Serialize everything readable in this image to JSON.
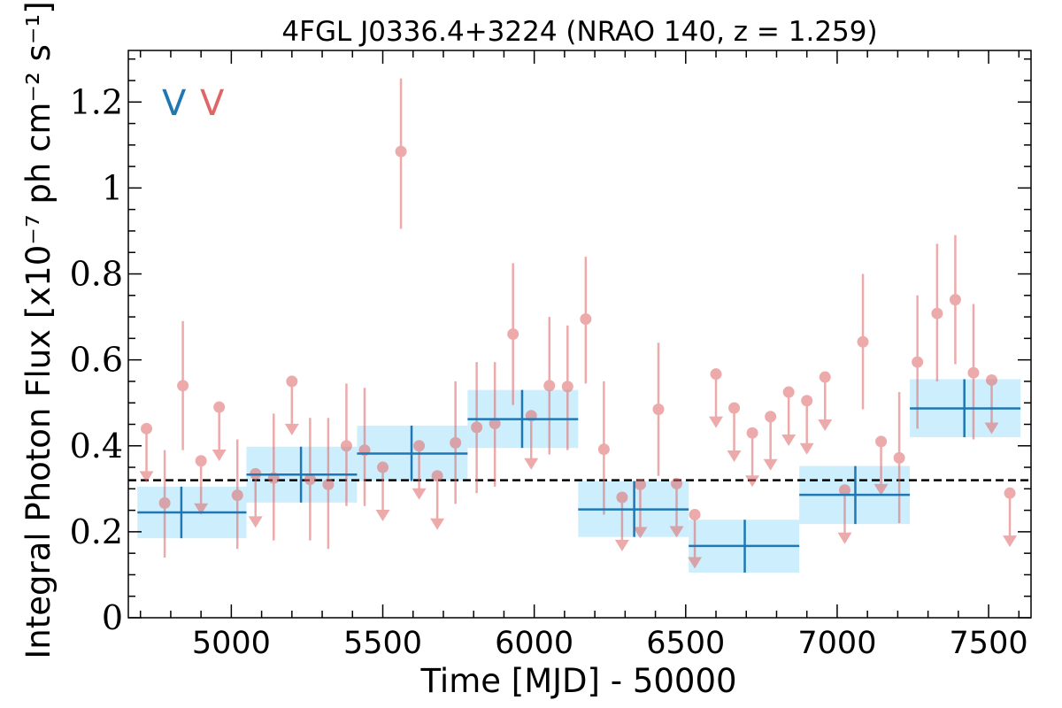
{
  "colors": {
    "binned": "#1f77b4",
    "binned_fill": "#cdeefc",
    "monthly": "#e06666",
    "mean_line": "#000000"
  },
  "chart_data": {
    "type": "scatter",
    "title": "4FGL J0336.4+3224 (NRAO 140, z = 1.259)",
    "xlabel": "Time [MJD] - 50000",
    "ylabel": "Integral Photon Flux [x10⁻⁷ ph cm⁻² s⁻¹]",
    "xlim": [
      4660,
      7640
    ],
    "ylim": [
      0,
      1.32
    ],
    "xticks": [
      5000,
      5500,
      6000,
      6500,
      7000,
      7500
    ],
    "xtick_labels": [
      "5000",
      "5500",
      "6000",
      "6500",
      "7000",
      "7500"
    ],
    "yticks": [
      0,
      0.2,
      0.4,
      0.6,
      0.8,
      1,
      1.2
    ],
    "ytick_labels": [
      "0",
      "0.2",
      "0.4",
      "0.6",
      "0.8",
      "1",
      "1.2"
    ],
    "legend": {
      "placement": "top-left",
      "entries": [
        {
          "label": "V",
          "series": "binned"
        },
        {
          "label": "V",
          "series": "monthly"
        }
      ]
    },
    "mean_flux": 0.32,
    "series": [
      {
        "key": "binned",
        "bins": [
          {
            "x0": 4690,
            "x1": 5050,
            "xc": 4835,
            "y": 0.245,
            "lo": 0.185,
            "hi": 0.305
          },
          {
            "x0": 5050,
            "x1": 5415,
            "xc": 5230,
            "y": 0.333,
            "lo": 0.268,
            "hi": 0.398
          },
          {
            "x0": 5415,
            "x1": 5780,
            "xc": 5595,
            "y": 0.382,
            "lo": 0.318,
            "hi": 0.447
          },
          {
            "x0": 5780,
            "x1": 6145,
            "xc": 5960,
            "y": 0.462,
            "lo": 0.395,
            "hi": 0.53
          },
          {
            "x0": 6145,
            "x1": 6510,
            "xc": 6330,
            "y": 0.252,
            "lo": 0.188,
            "hi": 0.318
          },
          {
            "x0": 6510,
            "x1": 6875,
            "xc": 6695,
            "y": 0.167,
            "lo": 0.105,
            "hi": 0.228
          },
          {
            "x0": 6875,
            "x1": 7240,
            "xc": 7060,
            "y": 0.286,
            "lo": 0.218,
            "hi": 0.353
          },
          {
            "x0": 7240,
            "x1": 7605,
            "xc": 7420,
            "y": 0.487,
            "lo": 0.42,
            "hi": 0.555
          }
        ]
      },
      {
        "key": "monthly",
        "points": [
          {
            "x": 4720,
            "y": 0.44,
            "ul": true
          },
          {
            "x": 4780,
            "y": 0.267,
            "lo": 0.14,
            "hi": 0.39
          },
          {
            "x": 4840,
            "y": 0.54,
            "lo": 0.39,
            "hi": 0.69
          },
          {
            "x": 4900,
            "y": 0.365,
            "ul": true
          },
          {
            "x": 4960,
            "y": 0.49,
            "ul": true
          },
          {
            "x": 5020,
            "y": 0.285,
            "lo": 0.16,
            "hi": 0.415
          },
          {
            "x": 5080,
            "y": 0.335,
            "ul": true
          },
          {
            "x": 5140,
            "y": 0.325,
            "lo": 0.18,
            "hi": 0.475
          },
          {
            "x": 5200,
            "y": 0.55,
            "ul": true
          },
          {
            "x": 5260,
            "y": 0.322,
            "lo": 0.18,
            "hi": 0.465
          },
          {
            "x": 5320,
            "y": 0.31,
            "lo": 0.16,
            "hi": 0.465
          },
          {
            "x": 5380,
            "y": 0.4,
            "lo": 0.26,
            "hi": 0.545
          },
          {
            "x": 5440,
            "y": 0.39,
            "lo": 0.26,
            "hi": 0.535
          },
          {
            "x": 5500,
            "y": 0.35,
            "ul": true
          },
          {
            "x": 5560,
            "y": 1.085,
            "lo": 0.905,
            "hi": 1.255
          },
          {
            "x": 5620,
            "y": 0.4,
            "ul": true
          },
          {
            "x": 5680,
            "y": 0.33,
            "ul": true
          },
          {
            "x": 5740,
            "y": 0.407,
            "lo": 0.265,
            "hi": 0.55
          },
          {
            "x": 5810,
            "y": 0.443,
            "lo": 0.29,
            "hi": 0.595
          },
          {
            "x": 5870,
            "y": 0.452,
            "lo": 0.305,
            "hi": 0.595
          },
          {
            "x": 5930,
            "y": 0.66,
            "lo": 0.495,
            "hi": 0.825
          },
          {
            "x": 5990,
            "y": 0.47,
            "ul": true
          },
          {
            "x": 6050,
            "y": 0.54,
            "lo": 0.38,
            "hi": 0.7
          },
          {
            "x": 6110,
            "y": 0.538,
            "lo": 0.39,
            "hi": 0.68
          },
          {
            "x": 6170,
            "y": 0.695,
            "lo": 0.545,
            "hi": 0.84
          },
          {
            "x": 6230,
            "y": 0.392,
            "lo": 0.24,
            "hi": 0.55
          },
          {
            "x": 6290,
            "y": 0.28,
            "ul": true
          },
          {
            "x": 6350,
            "y": 0.31,
            "ul": true
          },
          {
            "x": 6410,
            "y": 0.485,
            "lo": 0.33,
            "hi": 0.64
          },
          {
            "x": 6470,
            "y": 0.312,
            "ul": true
          },
          {
            "x": 6530,
            "y": 0.24,
            "ul": true
          },
          {
            "x": 6600,
            "y": 0.567,
            "ul": true
          },
          {
            "x": 6660,
            "y": 0.488,
            "ul": true
          },
          {
            "x": 6720,
            "y": 0.43,
            "ul": true
          },
          {
            "x": 6780,
            "y": 0.468,
            "ul": true
          },
          {
            "x": 6840,
            "y": 0.525,
            "ul": true
          },
          {
            "x": 6900,
            "y": 0.505,
            "ul": true
          },
          {
            "x": 6960,
            "y": 0.56,
            "ul": true
          },
          {
            "x": 7025,
            "y": 0.297,
            "ul": true
          },
          {
            "x": 7085,
            "y": 0.642,
            "lo": 0.485,
            "hi": 0.8
          },
          {
            "x": 7145,
            "y": 0.41,
            "ul": true
          },
          {
            "x": 7205,
            "y": 0.372,
            "lo": 0.22,
            "hi": 0.525
          },
          {
            "x": 7265,
            "y": 0.595,
            "lo": 0.44,
            "hi": 0.75
          },
          {
            "x": 7330,
            "y": 0.708,
            "lo": 0.55,
            "hi": 0.87
          },
          {
            "x": 7390,
            "y": 0.74,
            "lo": 0.59,
            "hi": 0.89
          },
          {
            "x": 7450,
            "y": 0.57,
            "lo": 0.415,
            "hi": 0.73
          },
          {
            "x": 7510,
            "y": 0.553,
            "ul": true
          },
          {
            "x": 7570,
            "y": 0.29,
            "ul": true
          }
        ]
      }
    ]
  }
}
